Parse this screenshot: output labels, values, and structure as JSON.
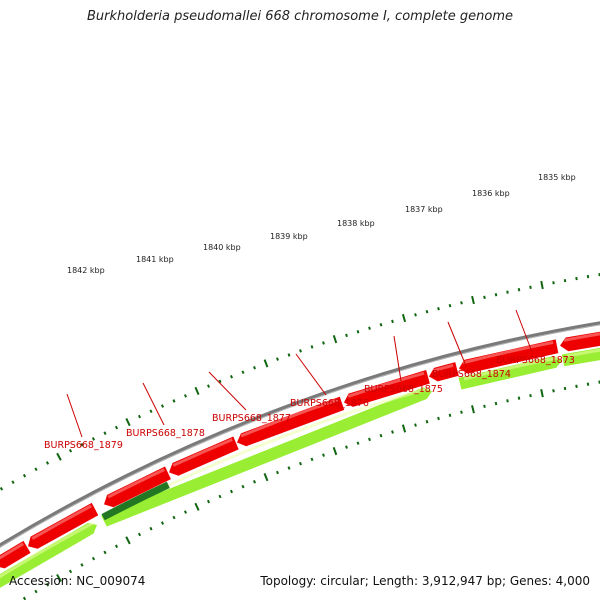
{
  "title": "Burkholderia pseudomallei 668 chromosome I, complete genome",
  "footer": {
    "accession_label": "Accession:",
    "accession": "NC_009074",
    "topology_label": "Topology:",
    "topology": "circular",
    "length_label": "Length:",
    "length": "3,912,947 bp",
    "genes_label": "Genes:",
    "genes": "4,000"
  },
  "colors": {
    "backbone": "#7a7a7a",
    "reverse_strand_gene": "#ee0000",
    "forward_strand_gene": "#99ee33",
    "highlight_gene": "#227722",
    "ticks": "#116611",
    "gene_label": "#cc0000"
  },
  "kbp_labels": [
    "1835 kbp",
    "1836 kbp",
    "1837 kbp",
    "1838 kbp",
    "1839 kbp",
    "1840 kbp",
    "1841 kbp",
    "1842 kbp"
  ],
  "gene_labels": [
    "BURPS668_1873",
    "BURPS668_1874",
    "BURPS668_1875",
    "BURPS668_1876",
    "BURPS668_1877",
    "BURPS668_1878",
    "BURPS668_1879"
  ]
}
